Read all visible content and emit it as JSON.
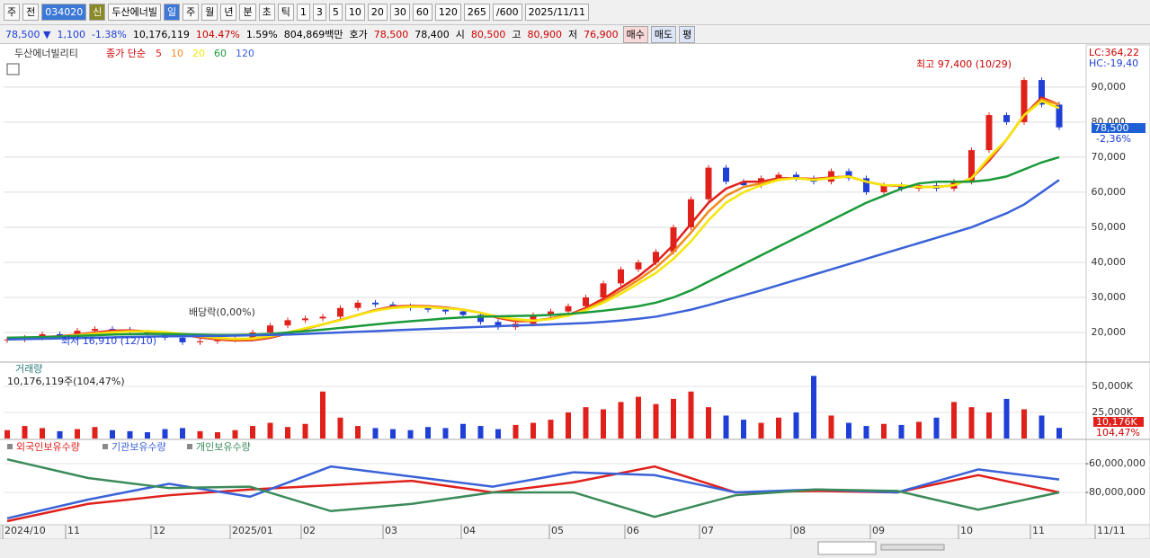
{
  "toolbar": {
    "row1": [
      "주",
      "전",
      "034020",
      "신",
      "두산에너빌",
      "일",
      "주",
      "월",
      "년",
      "분",
      "초",
      "틱",
      "1",
      "3",
      "5",
      "10",
      "20",
      "30",
      "60",
      "120",
      "265",
      "/600",
      "2025/11/11"
    ],
    "row2": [
      "78,500 ▼",
      "1,100",
      "-1.38%",
      "10,176,119",
      "104.47%",
      "1.59%",
      "804,869백만",
      "호가",
      "78,500",
      "78,400",
      "시",
      "80,500",
      "고",
      "80,900",
      "저",
      "76,900",
      "매수",
      "매도",
      "평"
    ]
  },
  "time_axis": {
    "labels": [
      "2024/10",
      "11",
      "12",
      "2025/01",
      "02",
      "03",
      "04",
      "05",
      "06",
      "07",
      "08",
      "09",
      "10",
      "11",
      "11/11"
    ]
  },
  "chart_data": [
    {
      "type": "candlestick",
      "title": "두산에너빌리티",
      "subtitle": "종가 단순",
      "up_color": "#e0201b",
      "down_color": "#1f3fd6",
      "open": [
        17800,
        18000,
        18500,
        19500,
        19000,
        20500,
        21000,
        20800,
        20000,
        19500,
        18500,
        17200,
        17500,
        18000,
        18500,
        20000,
        22000,
        23500,
        24000,
        24500,
        27000,
        28500,
        28000,
        27500,
        27000,
        26500,
        26000,
        25000,
        23000,
        21500,
        22500,
        25000,
        26000,
        27500,
        30000,
        34000,
        38000,
        40000,
        43000,
        50000,
        58000,
        67000,
        63000,
        62000,
        64000,
        65000,
        64000,
        63000,
        66000,
        64000,
        60000,
        62000,
        61000,
        62000,
        61000,
        63000,
        72000,
        82000,
        80000,
        92000,
        85000
      ],
      "close": [
        18000,
        18500,
        19500,
        19000,
        20500,
        21000,
        20800,
        20000,
        19500,
        18500,
        17200,
        17500,
        18000,
        18500,
        20000,
        22000,
        23500,
        24000,
        24500,
        27000,
        28500,
        28000,
        27500,
        27000,
        26500,
        26000,
        25000,
        23000,
        21500,
        22500,
        25000,
        26000,
        27500,
        30000,
        34000,
        38000,
        40000,
        43000,
        50000,
        58000,
        67000,
        63000,
        62000,
        64000,
        65000,
        64000,
        63000,
        66000,
        64000,
        60000,
        62000,
        61000,
        62000,
        61000,
        63000,
        72000,
        82000,
        80000,
        92000,
        85000,
        78500
      ],
      "series": [
        {
          "name": "5",
          "color": "#e0201b",
          "values": [
            18000,
            18200,
            18700,
            18900,
            19400,
            20000,
            20500,
            20600,
            20300,
            20000,
            19400,
            18600,
            18000,
            17700,
            17800,
            18500,
            19700,
            21000,
            22300,
            23600,
            25000,
            26400,
            27400,
            27600,
            27500,
            27100,
            26500,
            25600,
            24200,
            23200,
            23300,
            24000,
            25000,
            27000,
            29600,
            32800,
            36000,
            40000,
            45000,
            51000,
            57000,
            61000,
            63000,
            63000,
            64000,
            64000,
            63800,
            64200,
            64500,
            63000,
            62000,
            61800,
            61500,
            61500,
            62000,
            64000,
            69000,
            75000,
            82000,
            87000,
            85000
          ]
        },
        {
          "name": "10",
          "color": "#f08a1c",
          "values": [
            18000,
            18200,
            18600,
            18800,
            19300,
            19800,
            20200,
            20400,
            20300,
            20000,
            19500,
            18800,
            18200,
            17900,
            18000,
            18700,
            19800,
            21100,
            22300,
            23500,
            25000,
            26300,
            27200,
            27500,
            27400,
            27000,
            26500,
            25600,
            24400,
            23500,
            23300,
            23900,
            24900,
            26600,
            29000,
            31900,
            35000,
            38500,
            43000,
            48500,
            54500,
            59000,
            61500,
            62500,
            63700,
            64000,
            63600,
            64100,
            64500,
            63000,
            62000,
            61900,
            61500,
            61500,
            62000,
            64000,
            69500,
            75000,
            82000,
            86500,
            85000
          ]
        },
        {
          "name": "20",
          "color": "#f5e60a",
          "values": [
            18000,
            18200,
            18500,
            18800,
            19200,
            19600,
            20000,
            20300,
            20400,
            20100,
            19600,
            19000,
            18500,
            18200,
            18300,
            19000,
            20000,
            21200,
            22300,
            23500,
            25000,
            26200,
            27000,
            27300,
            27200,
            26900,
            26500,
            25600,
            24500,
            23800,
            23400,
            23800,
            24800,
            26300,
            28500,
            31000,
            34000,
            37000,
            41000,
            46000,
            52000,
            57000,
            60000,
            62000,
            63500,
            64000,
            63500,
            64000,
            64500,
            63000,
            62000,
            62000,
            61500,
            61500,
            62000,
            64000,
            70000,
            75000,
            82000,
            86000,
            84000
          ]
        },
        {
          "name": "60",
          "color": "#1a9a3a",
          "values": [
            18500,
            18600,
            18700,
            18800,
            19000,
            19200,
            19400,
            19500,
            19600,
            19600,
            19500,
            19400,
            19300,
            19300,
            19400,
            19600,
            20000,
            20400,
            20800,
            21300,
            21800,
            22300,
            22800,
            23200,
            23600,
            24000,
            24300,
            24500,
            24600,
            24700,
            24800,
            25000,
            25300,
            25700,
            26200,
            26800,
            27500,
            28500,
            30000,
            32000,
            34500,
            37000,
            39500,
            42000,
            44500,
            47000,
            49500,
            52000,
            54500,
            57000,
            59000,
            61000,
            62500,
            63000,
            63000,
            63000,
            63500,
            64500,
            66500,
            68500,
            70000
          ]
        },
        {
          "name": "120",
          "color": "#3a62d8",
          "values": [
            18000,
            18100,
            18200,
            18300,
            18400,
            18500,
            18600,
            18700,
            18800,
            18900,
            18900,
            19000,
            19000,
            19100,
            19200,
            19300,
            19400,
            19600,
            19800,
            20000,
            20200,
            20400,
            20600,
            20800,
            21000,
            21200,
            21400,
            21600,
            21800,
            22000,
            22100,
            22300,
            22500,
            22700,
            23000,
            23400,
            23900,
            24500,
            25500,
            26500,
            27800,
            29200,
            30600,
            32000,
            33500,
            35000,
            36500,
            38000,
            39500,
            41000,
            42500,
            44000,
            45500,
            47000,
            48500,
            50000,
            52000,
            54000,
            56500,
            60000,
            63500
          ]
        }
      ],
      "ylim": [
        11800,
        101500
      ],
      "yticks": [
        {
          "value": 20000,
          "label": "20,000"
        },
        {
          "value": 30000,
          "label": "30,000"
        },
        {
          "value": 40000,
          "label": "40,000"
        },
        {
          "value": 50000,
          "label": "50,000"
        },
        {
          "value": 60000,
          "label": "60,000"
        },
        {
          "value": 70000,
          "label": "70,000"
        },
        {
          "value": 80000,
          "label": "80,000"
        },
        {
          "value": 90000,
          "label": "90,000"
        }
      ],
      "annotations": {
        "high": "최고 97,400 (10/29)",
        "low": "최저 16,910 (12/10)",
        "dividend": "배당락(0,00%)",
        "lc": "LC:364,22",
        "hc": "HC:-19,40",
        "last": "78,500",
        "last_pct": "-2,36%"
      }
    },
    {
      "type": "bar",
      "title": "거래량",
      "subtitle": "10,176,119주(104,47%)",
      "values": [
        8000,
        12000,
        10000,
        7000,
        9000,
        11000,
        8000,
        7000,
        6000,
        9000,
        10000,
        7000,
        6000,
        8000,
        12000,
        15000,
        11000,
        14000,
        45000,
        20000,
        12000,
        10000,
        9000,
        8000,
        11000,
        10000,
        14000,
        12000,
        9000,
        13000,
        15000,
        18000,
        25000,
        30000,
        28000,
        35000,
        40000,
        33000,
        38000,
        45000,
        30000,
        22000,
        18000,
        15000,
        20000,
        25000,
        60000,
        22000,
        15000,
        12000,
        14000,
        13000,
        16000,
        20000,
        35000,
        30000,
        25000,
        38000,
        28000,
        22000,
        10176
      ],
      "ylim": [
        0,
        71500
      ],
      "yticks": [
        {
          "value": 25000,
          "label": "25,000K"
        },
        {
          "value": 50000,
          "label": "50,000K"
        }
      ],
      "annotations": {
        "last": "10,176K",
        "last_pct": "104,47%"
      }
    },
    {
      "type": "line",
      "series": [
        {
          "name": "외국인보유수량",
          "color": "#e0201b",
          "values": [
            -100000000,
            -88000000,
            -82000000,
            -78000000,
            -75000000,
            -72000000,
            -80000000,
            -73000000,
            -62000000,
            -80000000,
            -79000000,
            -80000000,
            -68000000,
            -80000000
          ]
        },
        {
          "name": "기관보유수량",
          "color": "#3a62d8",
          "values": [
            -98000000,
            -85000000,
            -74000000,
            -83000000,
            -62000000,
            -69000000,
            -76000000,
            -66000000,
            -68000000,
            -80000000,
            -78000000,
            -80000000,
            -64000000,
            -71000000
          ]
        },
        {
          "name": "개인보유수량",
          "color": "#3a8a5a",
          "values": [
            -57000000,
            -70000000,
            -77000000,
            -76000000,
            -93000000,
            -88000000,
            -80000000,
            -80000000,
            -97000000,
            -82000000,
            -78000000,
            -79000000,
            -92000000,
            -80000000
          ]
        }
      ],
      "ylim": [
        -101250000,
        -44400000
      ],
      "yticks": [
        {
          "value": -60000000,
          "label": "-60,000,000"
        },
        {
          "value": -80000000,
          "label": "-80,000,000"
        }
      ]
    }
  ]
}
